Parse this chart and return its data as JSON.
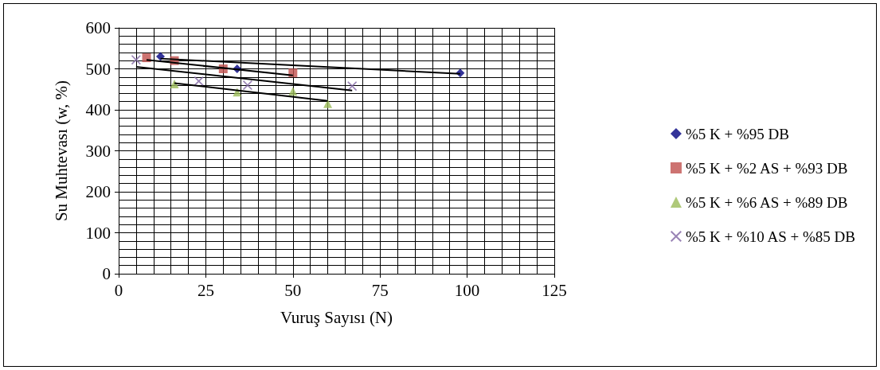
{
  "chart_data": {
    "type": "scatter",
    "xlabel": "Vuruş Sayısı (N)",
    "ylabel": "Su Muhtevası (w, %)",
    "xlim": [
      0,
      125
    ],
    "xticks": [
      0,
      25,
      50,
      75,
      100,
      125
    ],
    "ylim": [
      0,
      600
    ],
    "yticks": [
      0,
      100,
      200,
      300,
      400,
      500,
      600
    ],
    "grid": true,
    "legend": "right",
    "series": [
      {
        "name": "%5 K + %95 DB",
        "color": "#000080",
        "marker": "diamond",
        "x": [
          12,
          34,
          98
        ],
        "values": [
          530,
          500,
          490
        ]
      },
      {
        "name": "%5 K + %2 AS + %93 DB",
        "color": "#c0504d",
        "marker": "square",
        "x": [
          8,
          16,
          30,
          50
        ],
        "values": [
          527,
          520,
          500,
          490
        ]
      },
      {
        "name": "%5 K + %6 AS + %89 DB",
        "color": "#9bbb59",
        "marker": "triangle",
        "x": [
          16,
          34,
          50,
          60
        ],
        "values": [
          463,
          443,
          445,
          415
        ]
      },
      {
        "name": "%5 K + %10 AS + %85 DB",
        "color": "#8064a2",
        "marker": "cross",
        "x": [
          5,
          23,
          37,
          67
        ],
        "values": [
          522,
          470,
          460,
          458
        ]
      },
      {
        "type": "line",
        "color": "#000000",
        "marker": "none",
        "x": [
          12,
          98
        ],
        "values": [
          525,
          488
        ]
      },
      {
        "type": "line",
        "color": "#000000",
        "marker": "none",
        "x": [
          8,
          50
        ],
        "values": [
          522,
          484
        ]
      },
      {
        "type": "line",
        "color": "#000000",
        "marker": "none",
        "x": [
          16,
          60
        ],
        "values": [
          465,
          422
        ]
      },
      {
        "type": "line",
        "color": "#000000",
        "marker": "none",
        "x": [
          5,
          67
        ],
        "values": [
          505,
          447
        ]
      }
    ]
  }
}
